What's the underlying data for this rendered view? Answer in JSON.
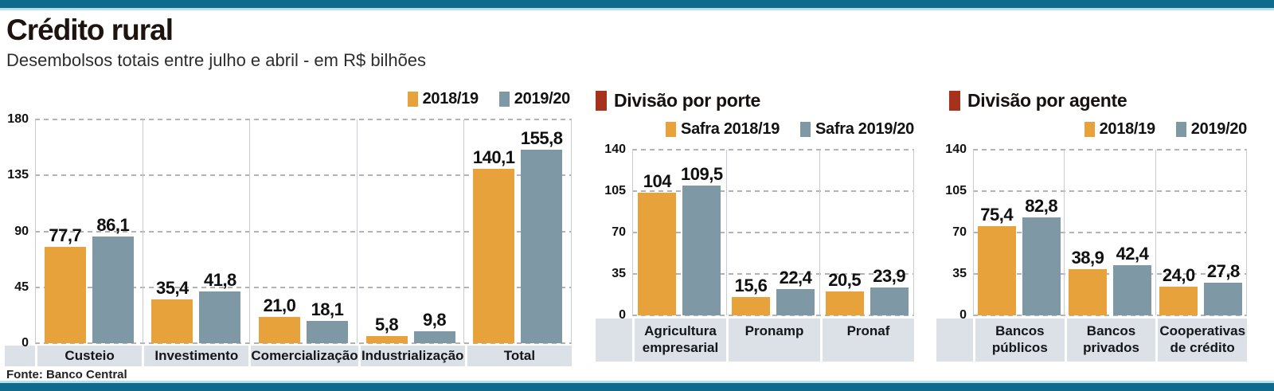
{
  "header": {
    "title": "Crédito rural",
    "subtitle": "Desembolsos totais entre julho e abril - em R$ bilhões"
  },
  "source": "Fonte: Banco Central",
  "colors": {
    "series": [
      "#E8A23C",
      "#7E98A6"
    ],
    "accent_red": "#A6311C",
    "frame_teal": "#0E6B8E",
    "frame_light_blue": "#B9DFEF",
    "band": "#DBE1E7",
    "grid": "#B3B3B3",
    "separator": "#C6CCD2"
  },
  "chart_data": [
    {
      "type": "bar",
      "title": "",
      "categories": [
        "Custeio",
        "Investimento",
        "Comercialização",
        "Industrialização",
        "Total"
      ],
      "series": [
        {
          "name": "2018/19",
          "values": [
            77.7,
            35.4,
            21.0,
            5.8,
            140.1
          ],
          "labels": [
            "77,7",
            "35,4",
            "21,0",
            "5,8",
            "140,1"
          ]
        },
        {
          "name": "2019/20",
          "values": [
            86.1,
            41.8,
            18.1,
            9.8,
            155.8
          ],
          "labels": [
            "86,1",
            "41,8",
            "18,1",
            "9,8",
            "155,8"
          ]
        }
      ],
      "ylim": [
        0,
        180
      ],
      "yticks": [
        0,
        45,
        90,
        135,
        180
      ],
      "legend_position": "top-right",
      "grid": "dashed-horizontal"
    },
    {
      "type": "bar",
      "title": "Divisão por porte",
      "categories": [
        "Agricultura empresarial",
        "Pronamp",
        "Pronaf"
      ],
      "series": [
        {
          "name": "Safra 2018/19",
          "values": [
            104,
            15.6,
            20.5
          ],
          "labels": [
            "104",
            "15,6",
            "20,5"
          ]
        },
        {
          "name": "Safra 2019/20",
          "values": [
            109.5,
            22.4,
            23.9
          ],
          "labels": [
            "109,5",
            "22,4",
            "23,9"
          ]
        }
      ],
      "ylim": [
        0,
        140
      ],
      "yticks": [
        0,
        35,
        70,
        105,
        140
      ],
      "legend_position": "top-right",
      "grid": "dashed-horizontal"
    },
    {
      "type": "bar",
      "title": "Divisão por agente",
      "categories": [
        "Bancos públicos",
        "Bancos privados",
        "Cooperativas de crédito"
      ],
      "series": [
        {
          "name": "2018/19",
          "values": [
            75.4,
            38.9,
            24.0
          ],
          "labels": [
            "75,4",
            "38,9",
            "24,0"
          ]
        },
        {
          "name": "2019/20",
          "values": [
            82.8,
            42.4,
            27.8
          ],
          "labels": [
            "82,8",
            "42,4",
            "27,8"
          ]
        }
      ],
      "ylim": [
        0,
        140
      ],
      "yticks": [
        0,
        35,
        70,
        105,
        140
      ],
      "legend_position": "top-right",
      "grid": "dashed-horizontal"
    }
  ]
}
